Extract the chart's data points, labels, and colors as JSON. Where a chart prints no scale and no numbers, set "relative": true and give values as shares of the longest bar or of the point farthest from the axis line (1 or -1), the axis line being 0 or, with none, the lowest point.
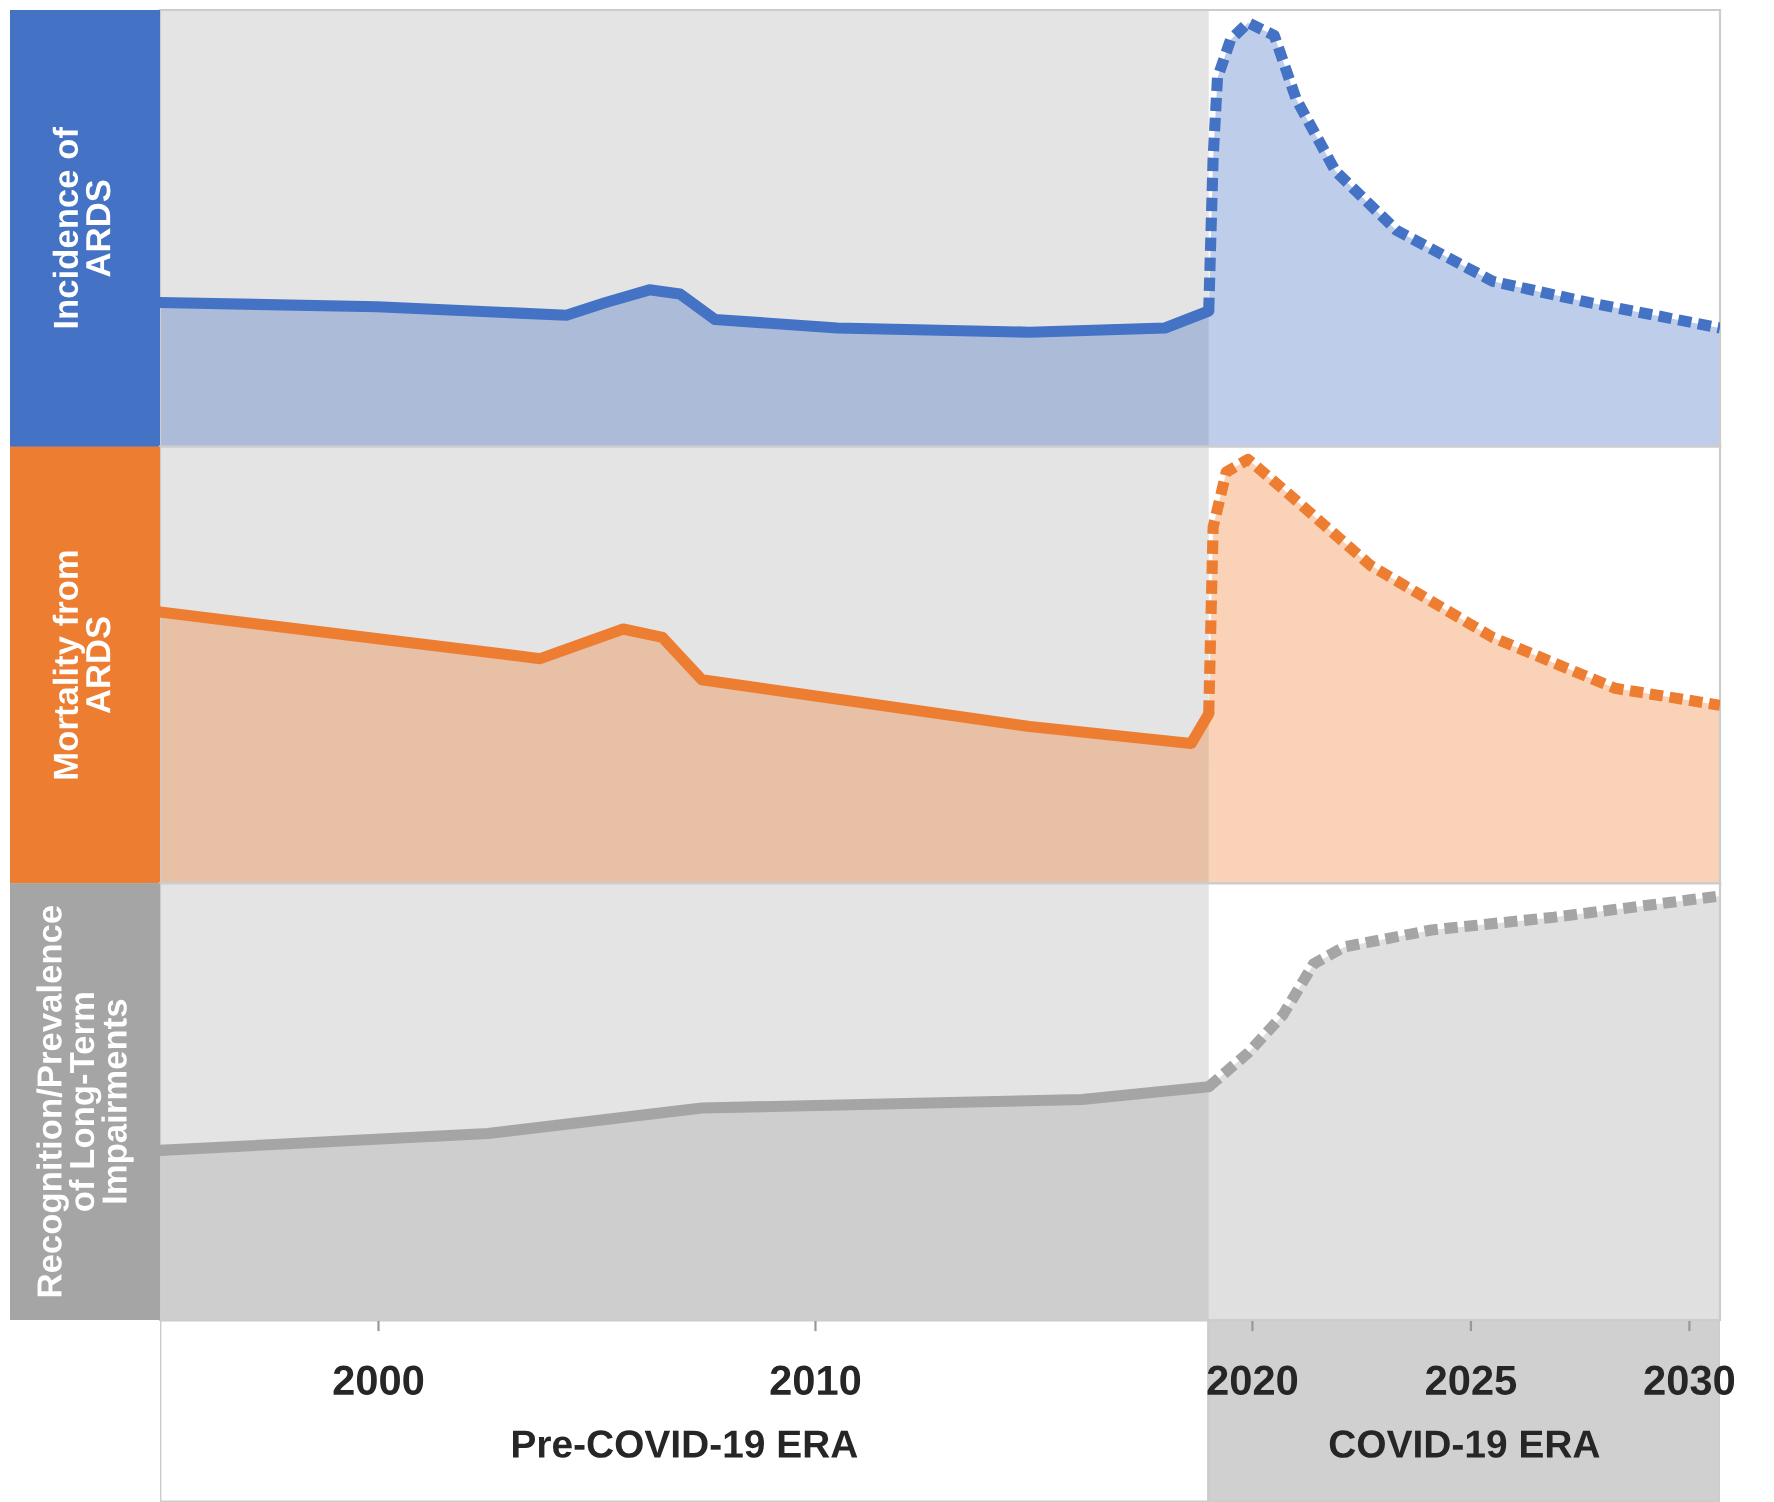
{
  "chart_data": [
    {
      "type": "area",
      "relative": true,
      "ylabel": "Incidence of ARDS",
      "xlim": [
        1995,
        2030.7
      ],
      "xticks": [
        2000,
        2010,
        2020,
        2025,
        2030
      ],
      "tick_labels": false,
      "grid": false,
      "bands": [
        {
          "axis": "x",
          "from": 1995,
          "to": 2019,
          "color": "#e4e4e4"
        }
      ],
      "series": [
        {
          "color": "#4472c4",
          "line_style": "solid",
          "x": [
            1995,
            1999.97,
            2004.3,
            2005.2,
            2006.2,
            2006.9,
            2007.7,
            2010.5,
            2014.9,
            2018,
            2019
          ],
          "values": [
            0.34,
            0.33,
            0.31,
            0.34,
            0.37,
            0.36,
            0.3,
            0.28,
            0.27,
            0.28,
            0.32
          ]
        },
        {
          "color": "#4472c4",
          "line_style": "dashed",
          "x": [
            2019,
            2019.1,
            2019.2,
            2019.5,
            2019.9,
            2020.5,
            2021.0,
            2021.9,
            2023.3,
            2025.5,
            2027.7,
            2030.7
          ],
          "values": [
            0.32,
            0.68,
            0.87,
            0.96,
            1,
            0.97,
            0.82,
            0.65,
            0.51,
            0.39,
            0.34,
            0.28
          ]
        }
      ]
    },
    {
      "type": "area",
      "relative": true,
      "ylabel": "Mortality from ARDS",
      "xlim": [
        1995,
        2030.7
      ],
      "xticks": [
        2000,
        2010,
        2020,
        2025,
        2030
      ],
      "tick_labels": false,
      "grid": false,
      "bands": [
        {
          "axis": "x",
          "from": 1995,
          "to": 2019,
          "color": "#e4e4e4"
        }
      ],
      "series": [
        {
          "color": "#ed7d31",
          "line_style": "solid",
          "x": [
            1995,
            2003.7,
            2005.6,
            2006.5,
            2007.4,
            2014.9,
            2018.6,
            2019
          ],
          "values": [
            0.64,
            0.53,
            0.6,
            0.58,
            0.48,
            0.37,
            0.33,
            0.4
          ]
        },
        {
          "color": "#ed7d31",
          "line_style": "dashed",
          "x": [
            2019,
            2019.1,
            2019.4,
            2019.9,
            2020.7,
            2022.7,
            2025.5,
            2028.3,
            2030.7
          ],
          "values": [
            0.4,
            0.84,
            0.97,
            1,
            0.93,
            0.75,
            0.58,
            0.46,
            0.42
          ]
        }
      ]
    },
    {
      "type": "area",
      "relative": true,
      "ylabel": "Recognition/Prevalence of Long-Term Impairments",
      "xlim": [
        1995,
        2030.7
      ],
      "xticks": [
        2000,
        2010,
        2020,
        2025,
        2030
      ],
      "tick_labels": "x",
      "grid": false,
      "bands": [
        {
          "axis": "x",
          "from": 1995,
          "to": 2019,
          "color": "#e4e4e4"
        }
      ],
      "annotations": [
        "Pre-COVID-19 ERA",
        "COVID-19 ERA"
      ],
      "series": [
        {
          "color": "#a5a5a5",
          "line_style": "solid",
          "x": [
            1995,
            2002.5,
            2007.4,
            2011.8,
            2016.1,
            2019
          ],
          "values": [
            0.4,
            0.44,
            0.5,
            0.51,
            0.52,
            0.55
          ]
        },
        {
          "color": "#a5a5a5",
          "line_style": "dashed",
          "x": [
            2019,
            2019.9,
            2020.7,
            2021.4,
            2022.1,
            2024.1,
            2026.9,
            2030.7
          ],
          "values": [
            0.55,
            0.63,
            0.72,
            0.84,
            0.88,
            0.92,
            0.95,
            1
          ]
        }
      ]
    }
  ]
}
